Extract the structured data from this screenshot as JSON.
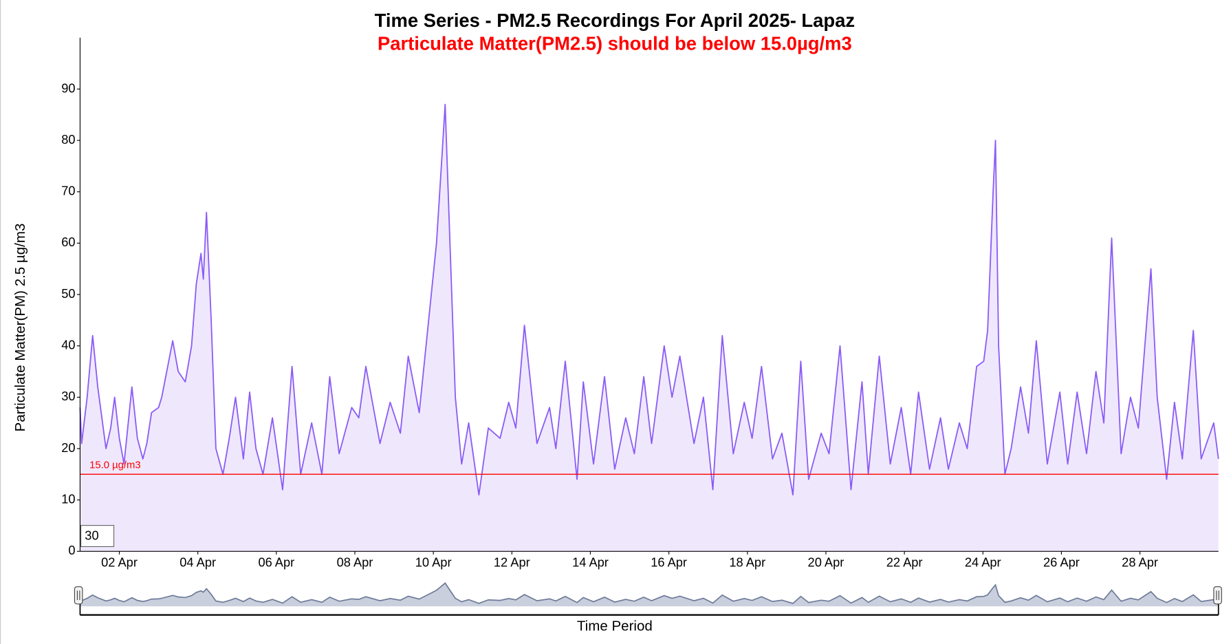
{
  "chart_data": {
    "type": "area",
    "title": "Time Series - PM2.5 Recordings For April 2025- Lapaz",
    "subtitle": "Particulate Matter(PM2.5) should be below 15.0µg/m3",
    "y_label": "Particulate Matter(PM) 2.5 µg/m3",
    "x_label": "Time Period",
    "zoom_input": "30",
    "color": "#8b5cf6",
    "fill": "#efe8fd",
    "threshold": {
      "value": 15,
      "label": "15.0 µg/m3",
      "color": "#ff0000"
    },
    "xlim": [
      1,
      30
    ],
    "ylim": [
      0,
      100
    ],
    "xticks": [
      {
        "value": 2,
        "label": "02 Apr"
      },
      {
        "value": 4,
        "label": "04 Apr"
      },
      {
        "value": 6,
        "label": "06 Apr"
      },
      {
        "value": 8,
        "label": "08 Apr"
      },
      {
        "value": 10,
        "label": "10 Apr"
      },
      {
        "value": 12,
        "label": "12 Apr"
      },
      {
        "value": 14,
        "label": "14 Apr"
      },
      {
        "value": 16,
        "label": "16 Apr"
      },
      {
        "value": 18,
        "label": "18 Apr"
      },
      {
        "value": 20,
        "label": "20 Apr"
      },
      {
        "value": 22,
        "label": "22 Apr"
      },
      {
        "value": 24,
        "label": "24 Apr"
      },
      {
        "value": 26,
        "label": "26 Apr"
      },
      {
        "value": 28,
        "label": "28 Apr"
      }
    ],
    "yticks": [
      0,
      10,
      20,
      30,
      40,
      50,
      60,
      70,
      80,
      90
    ],
    "x": [
      1.0,
      1.04,
      1.18,
      1.32,
      1.45,
      1.66,
      1.78,
      1.88,
      2.0,
      2.12,
      2.32,
      2.46,
      2.6,
      2.7,
      2.82,
      3.0,
      3.08,
      3.36,
      3.5,
      3.68,
      3.84,
      3.96,
      4.08,
      4.14,
      4.22,
      4.34,
      4.46,
      4.64,
      4.8,
      4.96,
      5.16,
      5.32,
      5.48,
      5.66,
      5.9,
      6.16,
      6.4,
      6.62,
      6.9,
      7.16,
      7.36,
      7.6,
      7.92,
      8.1,
      8.28,
      8.64,
      8.9,
      9.16,
      9.36,
      9.64,
      9.88,
      10.08,
      10.22,
      10.3,
      10.4,
      10.56,
      10.72,
      10.9,
      11.16,
      11.4,
      11.7,
      11.92,
      12.1,
      12.32,
      12.64,
      12.96,
      13.12,
      13.36,
      13.66,
      13.82,
      14.08,
      14.36,
      14.62,
      14.9,
      15.12,
      15.36,
      15.56,
      15.88,
      16.08,
      16.28,
      16.64,
      16.88,
      17.12,
      17.36,
      17.64,
      17.92,
      18.12,
      18.36,
      18.64,
      18.88,
      19.16,
      19.36,
      19.56,
      19.88,
      20.08,
      20.36,
      20.64,
      20.92,
      21.08,
      21.36,
      21.64,
      21.92,
      22.16,
      22.36,
      22.64,
      22.92,
      23.12,
      23.4,
      23.6,
      23.84,
      24.02,
      24.12,
      24.26,
      24.32,
      24.4,
      24.56,
      24.72,
      24.96,
      25.16,
      25.36,
      25.64,
      25.96,
      26.16,
      26.4,
      26.64,
      26.88,
      27.08,
      27.28,
      27.52,
      27.76,
      27.96,
      28.28,
      28.44,
      28.68,
      28.88,
      29.08,
      29.36,
      29.56,
      29.88,
      30.0
    ],
    "values": [
      28,
      21,
      30,
      42,
      32,
      20,
      24,
      30,
      22,
      17,
      32,
      22,
      18,
      21,
      27,
      28,
      30,
      41,
      35,
      33,
      40,
      52,
      58,
      53,
      66,
      45,
      20,
      15,
      22,
      30,
      18,
      31,
      20,
      15,
      26,
      12,
      36,
      15,
      25,
      15,
      34,
      19,
      28,
      26,
      36,
      21,
      29,
      23,
      38,
      27,
      45,
      60,
      77,
      87,
      65,
      30,
      17,
      25,
      11,
      24,
      22,
      29,
      24,
      44,
      21,
      28,
      20,
      37,
      14,
      33,
      17,
      34,
      16,
      26,
      19,
      34,
      21,
      40,
      30,
      38,
      21,
      30,
      12,
      42,
      19,
      29,
      22,
      36,
      18,
      23,
      11,
      37,
      14,
      23,
      19,
      40,
      12,
      33,
      15,
      38,
      17,
      28,
      15,
      31,
      16,
      26,
      16,
      25,
      20,
      36,
      37,
      43,
      70,
      80,
      40,
      15,
      20,
      32,
      23,
      41,
      17,
      31,
      17,
      31,
      19,
      35,
      25,
      61,
      19,
      30,
      24,
      55,
      30,
      14,
      29,
      18,
      43,
      18,
      25,
      18
    ]
  }
}
